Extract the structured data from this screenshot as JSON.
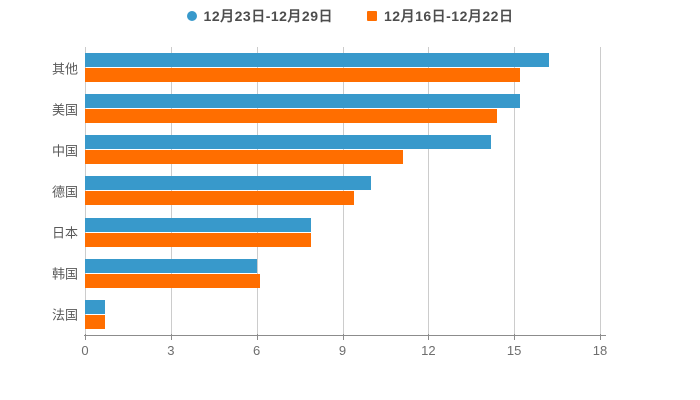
{
  "chart_data": {
    "type": "bar",
    "orientation": "horizontal",
    "title": "",
    "xlabel": "",
    "ylabel": "",
    "categories": [
      "其他",
      "美国",
      "中国",
      "德国",
      "日本",
      "韩国",
      "法国"
    ],
    "series": [
      {
        "name": "12月23日-12月29日",
        "color": "#3899CB",
        "marker": "circle",
        "values": [
          16.2,
          15.2,
          14.2,
          10.0,
          7.9,
          6.0,
          0.7
        ]
      },
      {
        "name": "12月16日-12月22日",
        "color": "#FF6E00",
        "marker": "square",
        "values": [
          15.2,
          14.4,
          11.1,
          9.4,
          7.9,
          6.1,
          0.7
        ]
      }
    ],
    "xlim": [
      0,
      18
    ],
    "xticks": [
      0,
      3,
      6,
      9,
      12,
      15,
      18
    ],
    "grid": true,
    "legend_position": "top"
  },
  "colors": {
    "series_blue": "#3899CB",
    "series_orange": "#FF6E00",
    "gridline": "#cccccc",
    "axis_line": "#8c8c8c",
    "tick_text": "#6e6e6e",
    "category_text": "#595959",
    "legend_text": "#4d4d4d",
    "background": "#ffffff"
  }
}
